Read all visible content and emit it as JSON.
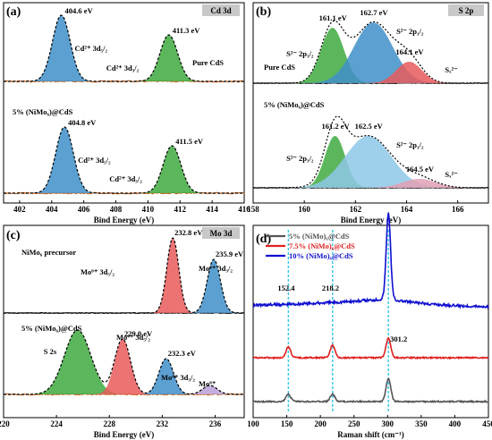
{
  "chart_data": [
    {
      "id": "a",
      "type": "line",
      "panel_label": "(a)",
      "title": "Cd 3d",
      "xlabel": "Bind Energy (eV)",
      "xlim": [
        401,
        416
      ],
      "x_ticks": [
        402,
        404,
        406,
        408,
        410,
        412,
        414,
        416
      ],
      "series": [
        {
          "label": "Pure CdS",
          "peaks": [
            {
              "center": 404.6,
              "label": "404.6 eV",
              "name": "Cd²⁺ 3d₅/₂",
              "color": "#3f8fc9"
            },
            {
              "center": 411.3,
              "label": "411.3 eV",
              "name": "Cd²⁺ 3d₃/₂",
              "color": "#3faa3f"
            }
          ]
        },
        {
          "label": "5% (NiMo₆)@CdS",
          "peaks": [
            {
              "center": 404.8,
              "label": "404.8 eV",
              "name": "Cd²⁺ 3d₅/₂",
              "color": "#3f8fc9"
            },
            {
              "center": 411.5,
              "label": "411.5 eV",
              "name": "Cd²⁺ 3d₃/₂",
              "color": "#3faa3f"
            }
          ]
        }
      ]
    },
    {
      "id": "b",
      "type": "line",
      "panel_label": "(b)",
      "title": "S 2p",
      "xlabel": "Bind Energy (eV)",
      "xlim": [
        158,
        167.2
      ],
      "x_ticks": [
        158,
        160,
        162,
        164,
        166
      ],
      "series": [
        {
          "label": "Pure CdS",
          "peaks": [
            {
              "center": 161.1,
              "label": "161.1 eV",
              "name": "S²⁻ 2p₃/₂",
              "color": "#3faa3f"
            },
            {
              "center": 162.7,
              "label": "162.7 eV",
              "name": "S²⁻ 2p₁/₂",
              "color": "#3f8fc9"
            },
            {
              "center": 164.1,
              "label": "164.1 eV",
              "name": "Sₓ²⁻",
              "color": "#e85a5a"
            }
          ]
        },
        {
          "label": "5% (NiMo₆)@CdS",
          "peaks": [
            {
              "center": 161.2,
              "label": "161.2 eV",
              "name": "S²⁻ 2p₃/₂",
              "color": "#3faa3f"
            },
            {
              "center": 162.5,
              "label": "162.5 eV",
              "name": "S²⁻ 2p₁/₂",
              "color": "#8ec8e8"
            },
            {
              "center": 164.5,
              "label": "164.5 eV",
              "name": "Sₓ²⁻",
              "color": "#e0a0b4"
            }
          ]
        }
      ]
    },
    {
      "id": "c",
      "type": "line",
      "panel_label": "(c)",
      "title": "Mo 3d",
      "xlabel": "Bind Energy (eV)",
      "xlim": [
        220,
        238.2
      ],
      "x_ticks": [
        220,
        224,
        228,
        232,
        236
      ],
      "series": [
        {
          "label": "NiMo₆ precursor",
          "peaks": [
            {
              "center": 232.8,
              "label": "232.8 eV",
              "name": "Mo⁶⁺ 3d₅/₂",
              "color": "#e85a5a"
            },
            {
              "center": 235.9,
              "label": "235.9 eV",
              "name": "Mo⁶⁺ 3d₃/₂",
              "color": "#3f8fc9"
            }
          ]
        },
        {
          "label": "5% (NiMo₆)@CdS",
          "peaks": [
            {
              "center": 225.6,
              "label": "S 2s",
              "name": "S 2s",
              "color": "#3faa3f"
            },
            {
              "center": 229.0,
              "label": "229.0 eV",
              "name": "Mo⁴⁺ 3d₅/₂",
              "color": "#e85a5a"
            },
            {
              "center": 232.3,
              "label": "232.3 eV",
              "name": "Mo⁴⁺ 3d₃/₂",
              "color": "#3f8fc9"
            },
            {
              "center": 235.6,
              "label": "",
              "name": "Mo⁶⁺",
              "color": "#b8a0d8"
            }
          ]
        }
      ]
    },
    {
      "id": "d",
      "type": "line",
      "panel_label": "(d)",
      "xlabel": "Raman shift (cm⁻¹)",
      "xlim": [
        100,
        450
      ],
      "x_ticks": [
        100,
        150,
        200,
        250,
        300,
        350,
        400,
        450
      ],
      "reference_lines": [
        152.4,
        218.2,
        301.2
      ],
      "reference_labels": [
        "152.4",
        "218.2",
        "301.2"
      ],
      "legend_position": "top-left",
      "series": [
        {
          "name": "5% (NiMo)₆@CdS",
          "color": "#555555",
          "peaks": [
            152.4,
            218.2,
            301.2
          ]
        },
        {
          "name": "7.5% (NiMo)₆@CdS",
          "color": "#e02020",
          "peaks": [
            152.4,
            218.2,
            301.2
          ]
        },
        {
          "name": "10% (NiMo)₆@CdS",
          "color": "#1010d0",
          "peaks": [
            301.2
          ]
        }
      ]
    }
  ]
}
